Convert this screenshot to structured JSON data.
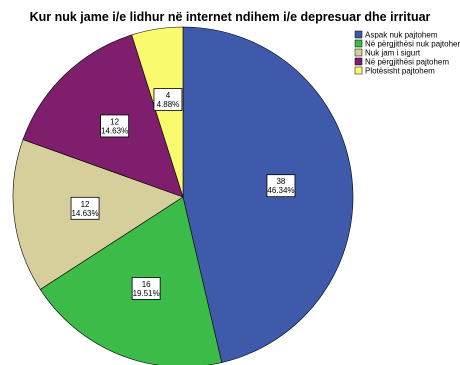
{
  "chart_data": {
    "type": "pie",
    "title": "Kur nuk jame i/e lidhur në internet ndihem i/e depresuar dhe irrituar",
    "legend_position": "top-right",
    "slices": [
      {
        "label": "Aspak nuk pajtohem",
        "value": 38,
        "percent_label": "46.34%",
        "color": "#3f5aaa"
      },
      {
        "label": "Në përgjithësi nuk pajtohem",
        "value": 16,
        "percent_label": "19.51%",
        "color": "#3dbb48"
      },
      {
        "label": "Nuk jam i sigurt",
        "value": 12,
        "percent_label": "14.63%",
        "color": "#d6cf9c"
      },
      {
        "label": "Në përgjithësi pajtohem",
        "value": 12,
        "percent_label": "14.63%",
        "color": "#7e1e6d"
      },
      {
        "label": "Plotësisht pajtohem",
        "value": 4,
        "percent_label": "4.88%",
        "color": "#fafa6e"
      }
    ]
  }
}
